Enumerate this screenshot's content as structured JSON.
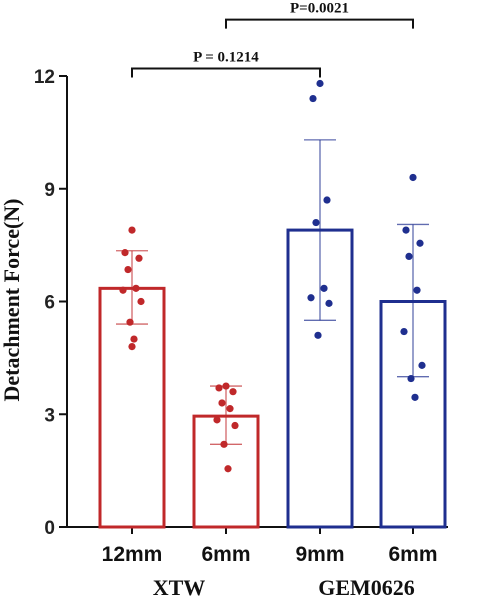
{
  "chart_data": {
    "type": "bar",
    "ylabel": "Detachment Force(N)",
    "ylim": [
      0,
      12
    ],
    "yticks": [
      "0",
      "3",
      "6",
      "9",
      "12"
    ],
    "categories": [
      "12mm",
      "6mm",
      "9mm",
      "6mm"
    ],
    "groups": [
      {
        "label": "XTW",
        "members": [
          0,
          1
        ],
        "color": "#c0282a"
      },
      {
        "label": "GEM0626",
        "members": [
          2,
          3
        ],
        "color": "#1f2f8f"
      }
    ],
    "bars": [
      {
        "category": "12mm",
        "mean": 6.35,
        "sd_low": 5.4,
        "sd_high": 7.35,
        "points": [
          7.9,
          7.3,
          7.15,
          6.85,
          6.35,
          6.3,
          6.0,
          5.45,
          5.0,
          4.8
        ]
      },
      {
        "category": "6mm",
        "mean": 2.95,
        "sd_low": 2.2,
        "sd_high": 3.75,
        "points": [
          3.75,
          3.7,
          3.6,
          3.3,
          3.15,
          2.85,
          2.7,
          2.2,
          1.55
        ]
      },
      {
        "category": "9mm",
        "mean": 7.9,
        "sd_low": 5.5,
        "sd_high": 10.3,
        "points": [
          11.8,
          11.4,
          8.7,
          8.1,
          6.35,
          6.1,
          5.95,
          5.1
        ]
      },
      {
        "category": "6mm",
        "mean": 6.0,
        "sd_low": 4.0,
        "sd_high": 8.05,
        "points": [
          9.3,
          7.9,
          7.55,
          7.2,
          6.3,
          5.2,
          4.3,
          3.95,
          3.45
        ]
      }
    ],
    "annotations": [
      {
        "text": "P=0.0021",
        "from": 1,
        "to": 3,
        "level": 13.5
      },
      {
        "text": "P = 0.1214",
        "from": 0,
        "to": 2,
        "level": 12.2
      }
    ],
    "grid": false,
    "legend": "none"
  }
}
